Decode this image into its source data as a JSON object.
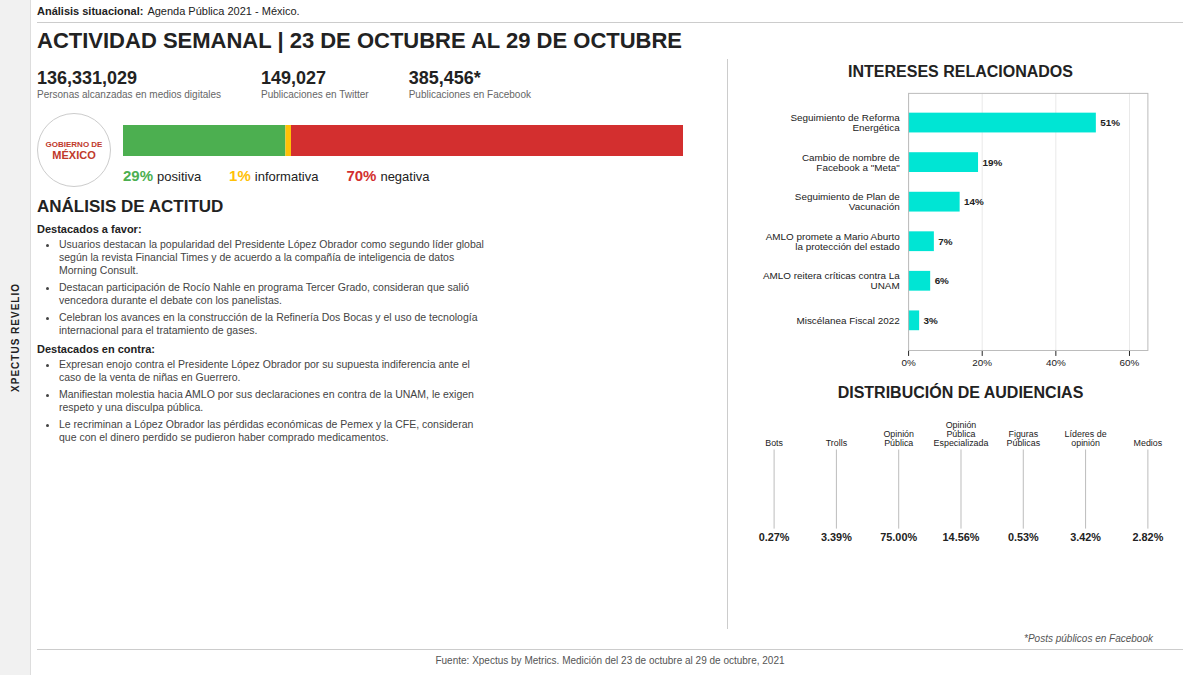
{
  "chart_data": [
    {
      "type": "bar",
      "orientation": "horizontal",
      "stacked": true,
      "title": "ACTIVIDAD SEMANAL | 23 DE OCTUBRE AL 29 DE OCTUBRE",
      "categories": [
        null
      ],
      "series": [
        {
          "name": "positiva",
          "color": "#4caf50",
          "values": [
            29
          ],
          "value_labels": [
            "29%"
          ]
        },
        {
          "name": "informativa",
          "color": "#ffc107",
          "values": [
            1
          ],
          "value_labels": [
            "1%"
          ]
        },
        {
          "name": "negativa",
          "color": "#d32f2f",
          "values": [
            70
          ],
          "value_labels": [
            "70%"
          ]
        }
      ],
      "xlim": [
        0,
        100
      ],
      "tick_labels": false,
      "data_labels": true,
      "annotations": [
        "XPECTUS REVELIO",
        "Análisis situacional:",
        "Agenda Pública 2021 - México.",
        "136,331,029",
        "Personas alcanzadas en medios digitales",
        "149,027",
        "Publicaciones en Twitter",
        "385,456*",
        "Publicaciones en Facebook",
        "GOBIERNO DE",
        "MÉXICO",
        "ANÁLISIS DE ACTITUD",
        "Destacados a favor:",
        "Usuarios destacan la popularidad del Presidente López Obrador como segundo líder global\nsegún la revista Financial Times y de acuerdo a la compañía de inteligencia de datos\nMorning Consult.",
        "Destacan participación de Rocío Nahle en programa Tercer Grado, consideran que salió\nvencedora durante el debate con los panelistas.",
        "Celebran los avances en la construcción de la Refinería Dos Bocas y el uso de tecnología\ninternacional para el tratamiento de gases.",
        "Destacados en contra:",
        "Expresan enojo contra el Presidente López Obrador por su supuesta indiferencia ante el\ncaso de la venta de niñas en Guerrero.",
        "Manifiestan molestia hacia AMLO por sus declaraciones en contra de la UNAM, le exigen\nrespeto y una disculpa pública.",
        "Le recriminan a López Obrador las pérdidas económicas de Pemex  y la CFE, consideran\nque con el dinero perdido se pudieron haber comprado medicamentos.",
        "*Posts públicos en Facebook",
        "Fuente: Xpectus by Metrics. Medición del 23 de octubre al 29 de octubre, 2021"
      ]
    },
    {
      "type": "bar",
      "orientation": "horizontal",
      "title": "INTERESES RELACIONADOS",
      "categories": [
        "Seguimiento de Reforma\nEnergética",
        "Cambio de nombre de\nFacebook a \"Meta\"",
        "Seguimiento de Plan de\nVacunación",
        "AMLO promete a Mario Aburto\nla protección del estado",
        "AMLO reitera críticas contra La\nUNAM",
        "Miscélanea Fiscal 2022"
      ],
      "values": [
        51,
        19,
        14,
        7,
        6,
        3
      ],
      "value_labels": [
        "51%",
        "19%",
        "14%",
        "7%",
        "6%",
        "3%"
      ],
      "color": "#00e5d4",
      "xlim": [
        0,
        65
      ],
      "xticks": [
        {
          "value": 0,
          "label": "0%"
        },
        {
          "value": 20,
          "label": "20%"
        },
        {
          "value": 40,
          "label": "40%"
        },
        {
          "value": 60,
          "label": "60%"
        }
      ],
      "grid": true,
      "data_labels": true
    },
    {
      "type": "text",
      "title": "DISTRIBUCIÓN DE AUDIENCIAS",
      "categories": [
        "Bots",
        "Trolls",
        "Opinión\nPública",
        "Opinión\nPública\nEspecializada",
        "Figuras\nPúblicas",
        "Líderes de\nopinión",
        "Medios"
      ],
      "values": [
        0.27,
        3.39,
        75.0,
        14.56,
        0.53,
        3.42,
        2.82
      ],
      "value_labels": [
        "0.27%",
        "3.39%",
        "75.00%",
        "14.56%",
        "0.53%",
        "3.42%",
        "2.82%"
      ],
      "data_labels": true
    }
  ]
}
